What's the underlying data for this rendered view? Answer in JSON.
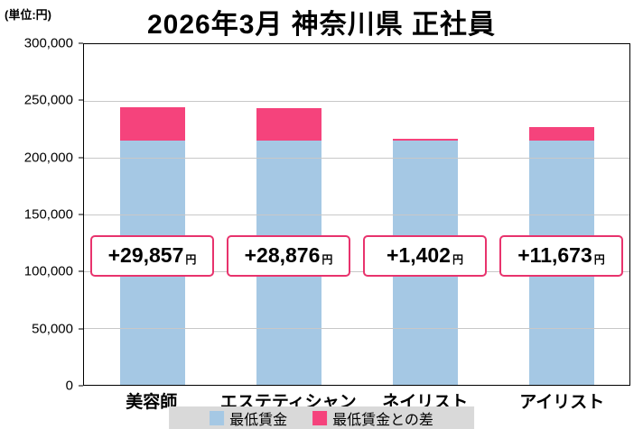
{
  "unit_label": "(単位:円)",
  "title": "2026年3月 神奈川県 正社員",
  "chart_data": {
    "type": "bar",
    "stacked": true,
    "title": "2026年3月 神奈川県 正社員",
    "categories": [
      "美容師",
      "エステティシャン",
      "ネイリスト",
      "アイリスト"
    ],
    "series": [
      {
        "name": "最低賃金",
        "color": "#a5c8e4",
        "values": [
          215000,
          215000,
          215000,
          215000
        ]
      },
      {
        "name": "最低賃金との差",
        "color": "#f5437c",
        "values": [
          29857,
          28876,
          1402,
          11673
        ]
      }
    ],
    "totals": [
      244857,
      243876,
      216402,
      226673
    ],
    "bar_labels": [
      {
        "value": "+29,857",
        "unit": "円"
      },
      {
        "value": "+28,876",
        "unit": "円"
      },
      {
        "value": "+1,402",
        "unit": "円"
      },
      {
        "value": "+11,673",
        "unit": "円"
      }
    ],
    "ylim": [
      0,
      300000
    ],
    "ytick_interval": 50000,
    "yticks": [
      {
        "value": 300000,
        "label": "300,000"
      },
      {
        "value": 250000,
        "label": "250,000"
      },
      {
        "value": 200000,
        "label": "200,000"
      },
      {
        "value": 150000,
        "label": "150,000"
      },
      {
        "value": 100000,
        "label": "100,000"
      },
      {
        "value": 50000,
        "label": "50,000"
      },
      {
        "value": 0,
        "label": "0"
      }
    ],
    "grid": true,
    "legend_position": "bottom",
    "label_box_border_color": "#e8336d"
  },
  "legend": {
    "background": "#d9d9d9",
    "items": [
      {
        "label": "最低賃金",
        "color": "#a5c8e4"
      },
      {
        "label": "最低賃金との差",
        "color": "#f5437c"
      }
    ]
  }
}
